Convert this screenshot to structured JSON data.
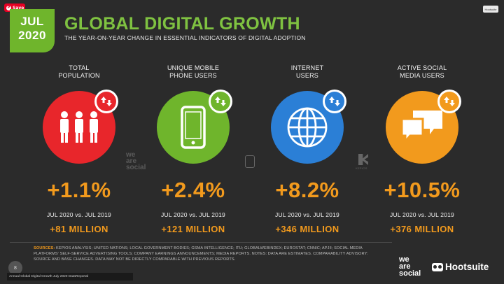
{
  "save_button": {
    "label": "Save"
  },
  "date_box": {
    "month": "JUL",
    "year": "2020",
    "color": "#6fb52c"
  },
  "hs_badge": "Hootsuite",
  "title": "GLOBAL DIGITAL GROWTH",
  "subtitle": "THE YEAR-ON-YEAR CHANGE IN ESSENTIAL INDICATORS OF DIGITAL ADOPTION",
  "accent_color": "#f29a1d",
  "columns": [
    {
      "label_line1": "TOTAL",
      "label_line2": "POPULATION",
      "color": "#e8262b",
      "icon": "people-icon",
      "change": "+1.1%",
      "period": "JUL 2020 vs. JUL 2019",
      "absolute": "+81 MILLION"
    },
    {
      "label_line1": "UNIQUE MOBILE",
      "label_line2": "PHONE USERS",
      "color": "#6fb52c",
      "icon": "mobile-phone-icon",
      "change": "+2.4%",
      "period": "JUL 2020 vs. JUL 2019",
      "absolute": "+121 MILLION"
    },
    {
      "label_line1": "INTERNET",
      "label_line2": "USERS",
      "color": "#2b7fd6",
      "icon": "globe-icon",
      "change": "+8.2%",
      "period": "JUL 2020 vs. JUL 2019",
      "absolute": "+346 MILLION"
    },
    {
      "label_line1": "ACTIVE SOCIAL",
      "label_line2": "MEDIA USERS",
      "color": "#f29a1d",
      "icon": "speech-bubbles-icon",
      "change": "+10.5%",
      "period": "JUL 2020 vs. JUL 2019",
      "absolute": "+376 MILLION"
    }
  ],
  "footer": {
    "sources_label": "SOURCES:",
    "sources_text": "KEPIOS ANALYSIS; UNITED NATIONS; LOCAL GOVERNMENT BODIES; GSMA INTELLIGENCE; ITU; GLOBALWEBINDEX; EUROSTAT; CNNIC; APJII; SOCIAL MEDIA PLATFORMS' SELF-SERVICE ADVERTISING TOOLS; COMPANY EARNINGS ANNOUNCEMENTS; MEDIA REPORTS. NOTES: DATA ARE ESTIMATES. COMPARABILITY ADVISORY: SOURCE AND BASE CHANGES. DATA MAY NOT BE DIRECTLY COMPARABLE WITH PREVIOUS REPORTS.",
    "slide_number": "8",
    "caption": "Annual Global Digital Growth July 2020 DataReportal",
    "we_are_social": [
      "we",
      "are",
      "social"
    ],
    "hootsuite": "Hootsuite",
    "kepios": "KEPIOS"
  }
}
